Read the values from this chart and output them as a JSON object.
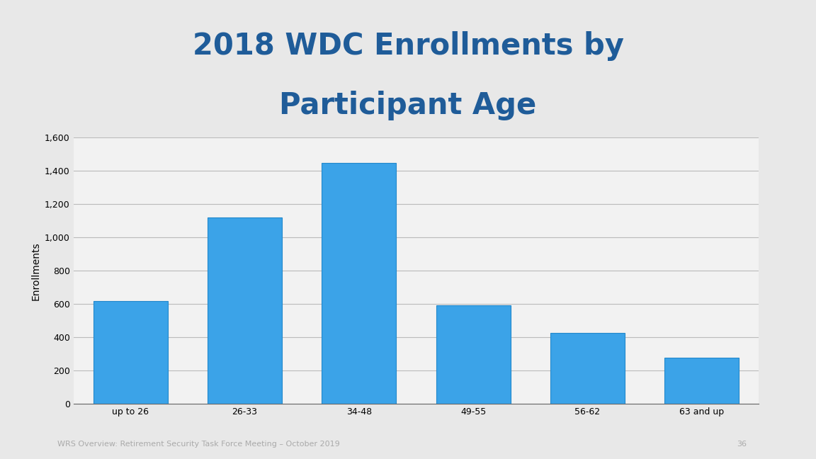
{
  "title_line1": "2018 WDC Enrollments by",
  "title_line2": "Participant Age",
  "title_color": "#1F5C99",
  "categories": [
    "up to 26",
    "26-33",
    "34-48",
    "49-55",
    "56-62",
    "63 and up"
  ],
  "values": [
    620,
    1120,
    1450,
    593,
    425,
    278
  ],
  "bar_color": "#3BA3E8",
  "bar_edge_color": "#2288CC",
  "ylabel": "Enrollments",
  "ylabel_color": "#000000",
  "yticks": [
    0,
    200,
    400,
    600,
    800,
    1000,
    1200,
    1400,
    1600
  ],
  "ylim": [
    0,
    1600
  ],
  "background_color": "#E8E8E8",
  "plot_bg_color": "#F2F2F2",
  "grid_color": "#BBBBBB",
  "footer_text": "WRS Overview: Retirement Security Task Force Meeting – October 2019",
  "footer_number": "36",
  "footer_color": "#AAAAAA",
  "title_fontsize": 30,
  "tick_fontsize": 9,
  "ylabel_fontsize": 10
}
